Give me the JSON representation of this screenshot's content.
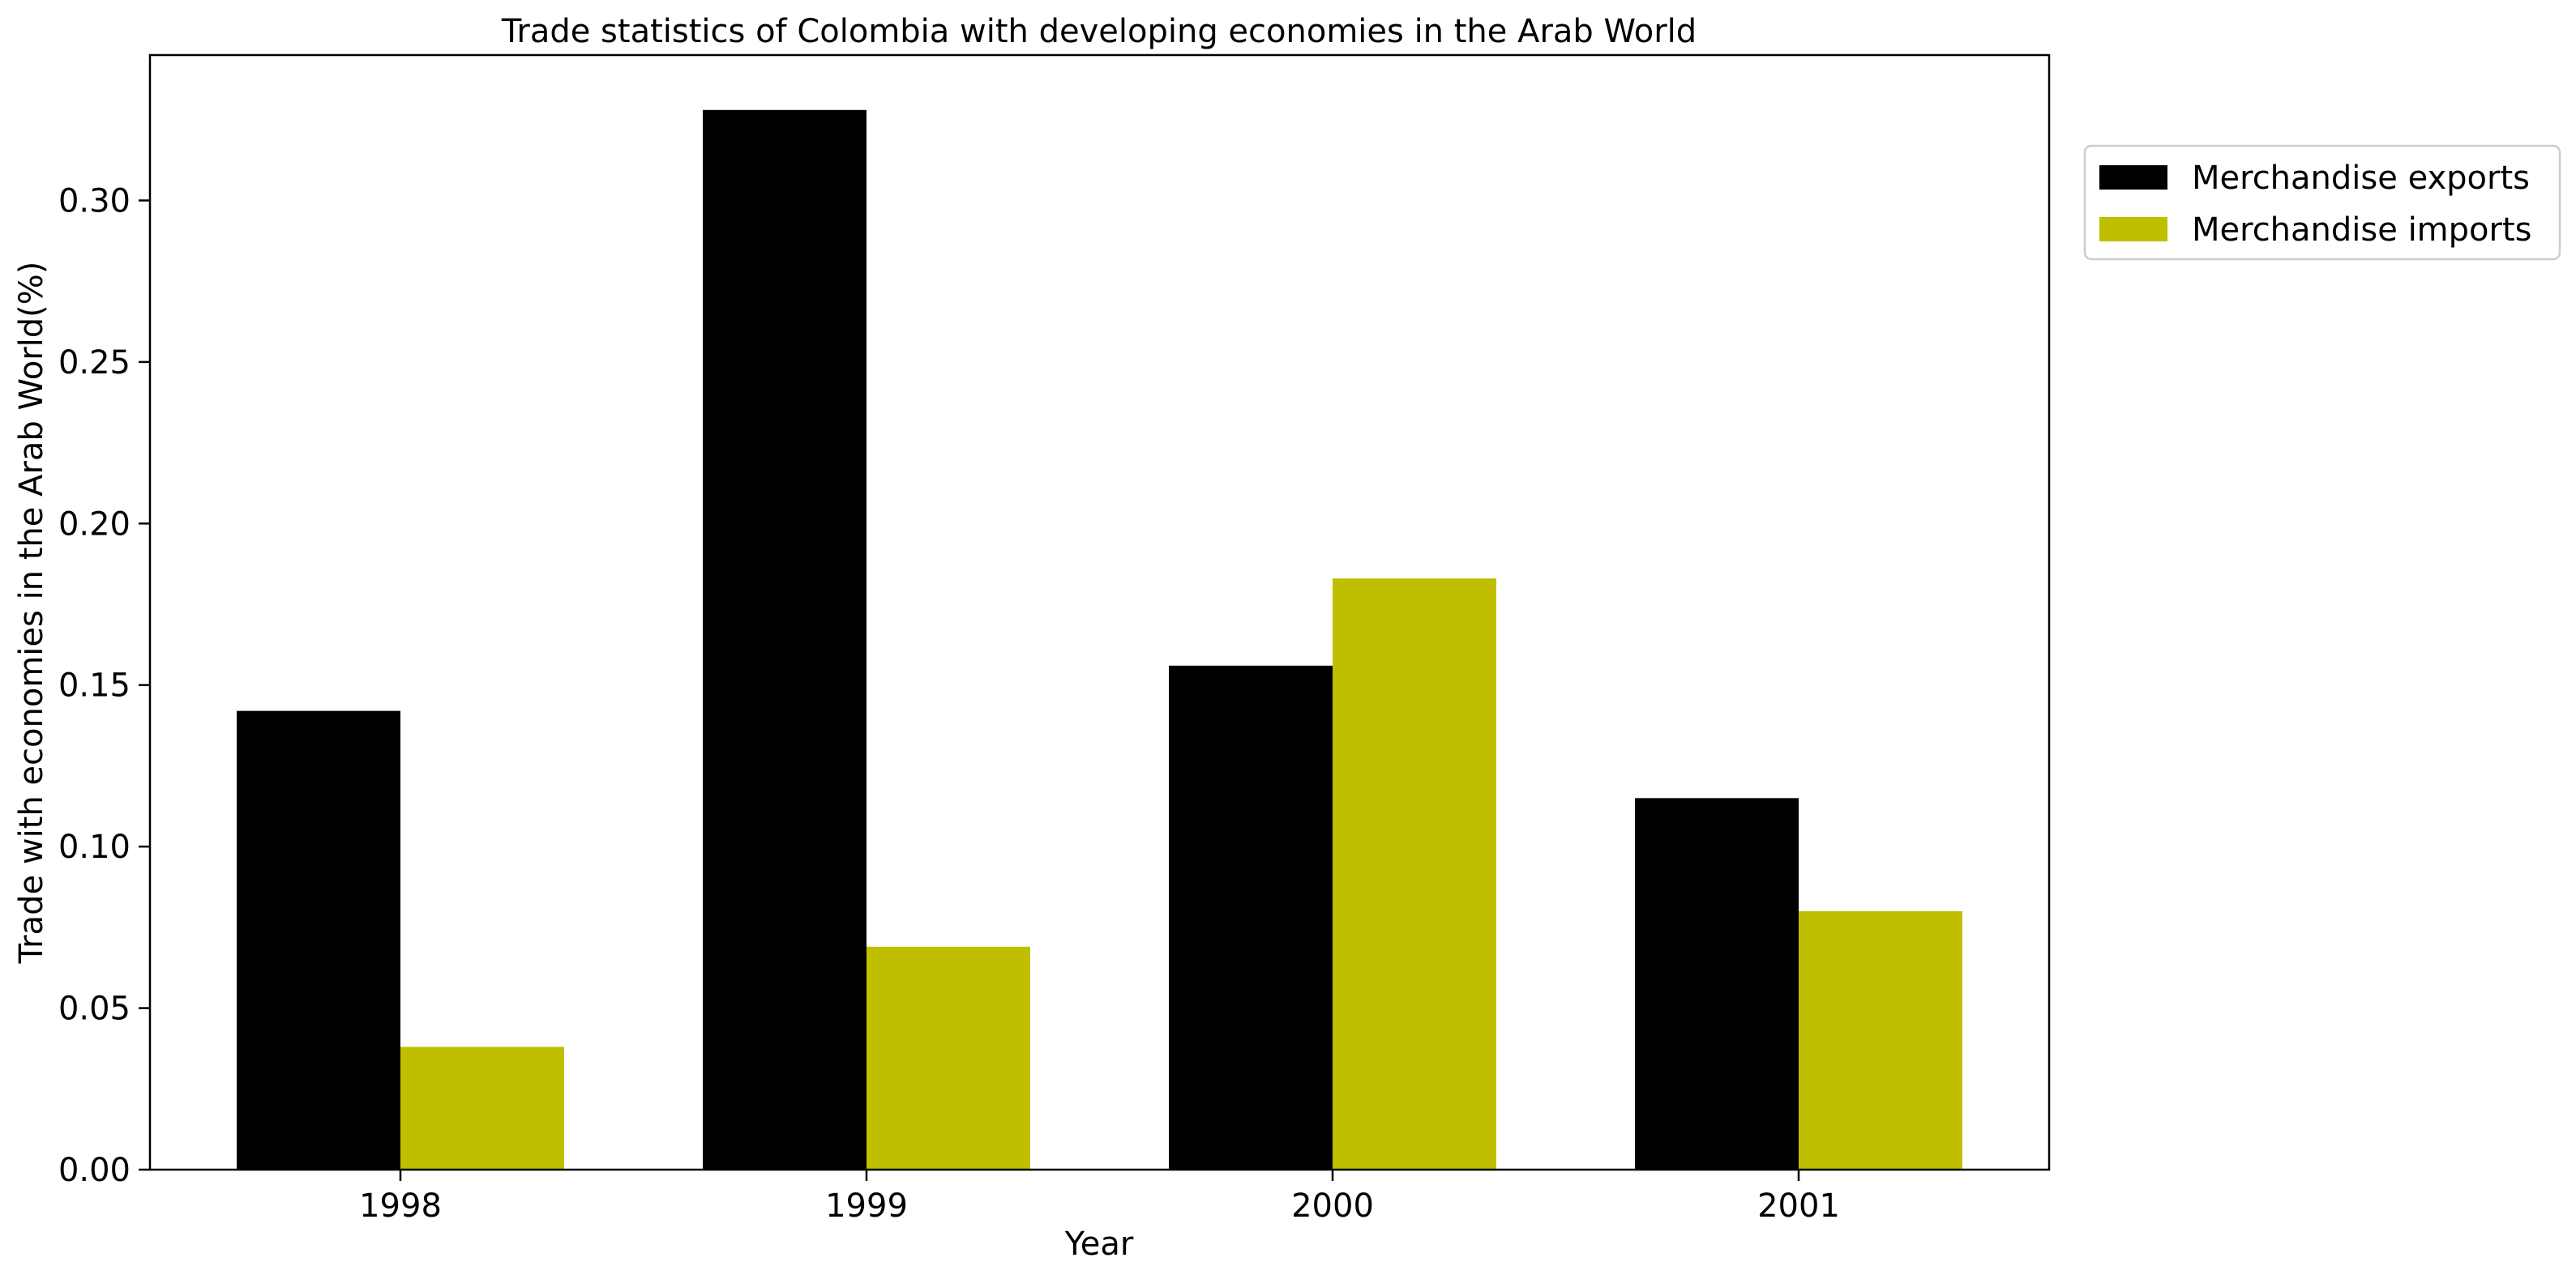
{
  "chart_data": {
    "type": "bar",
    "title": "Trade statistics of Colombia with developing economies in the Arab World",
    "xlabel": "Year",
    "ylabel": "Trade with economies in the Arab World(%)",
    "categories": [
      "1998",
      "1999",
      "2000",
      "2001"
    ],
    "series": [
      {
        "name": "Merchandise exports",
        "color": "#000000",
        "values": [
          0.142,
          0.328,
          0.156,
          0.115
        ]
      },
      {
        "name": "Merchandise imports",
        "color": "#bfbf00",
        "values": [
          0.038,
          0.069,
          0.183,
          0.08
        ]
      }
    ],
    "ylim": [
      0,
      0.345
    ],
    "yticks": [
      "0.00",
      "0.05",
      "0.10",
      "0.15",
      "0.20",
      "0.25",
      "0.30"
    ],
    "grid": false,
    "legend_position": "upper right, outside plot area"
  }
}
